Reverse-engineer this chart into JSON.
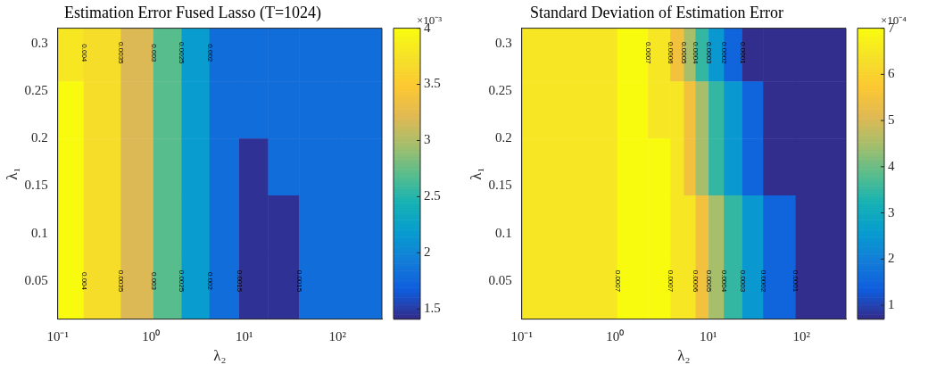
{
  "chart_data": [
    {
      "type": "heatmap",
      "title": "Estimation Error Fused Lasso (T=1024)",
      "xlabel": "λ₂",
      "ylabel": "λ₁",
      "clabel": "×10⁻³",
      "log": "x",
      "x": [
        0.12,
        0.3,
        0.75,
        1.5,
        3,
        6,
        13,
        25,
        60,
        180
      ],
      "y": [
        0.29,
        0.23,
        0.17,
        0.11,
        0.05
      ],
      "cells": [
        [
          3.8,
          3.7,
          3.2,
          2.7,
          2.2,
          1.8,
          1.8,
          1.8,
          1.8,
          1.8
        ],
        [
          4.0,
          3.7,
          3.2,
          2.7,
          2.2,
          1.8,
          1.8,
          1.8,
          1.8,
          1.8
        ],
        [
          4.0,
          3.7,
          3.2,
          2.7,
          2.2,
          1.8,
          1.45,
          1.8,
          1.8,
          1.8
        ],
        [
          4.0,
          3.7,
          3.2,
          2.7,
          2.2,
          1.8,
          1.45,
          1.45,
          1.8,
          1.8
        ],
        [
          4.0,
          3.7,
          3.2,
          2.7,
          2.2,
          1.8,
          1.45,
          1.45,
          1.8,
          1.8
        ]
      ],
      "xlim": [
        0.1,
        300
      ],
      "ylim": [
        0.01,
        0.316
      ],
      "xticks": [
        {
          "value": 0.1,
          "label": "10⁻¹"
        },
        {
          "value": 1,
          "label": "10⁰"
        },
        {
          "value": 10,
          "label": "10¹"
        },
        {
          "value": 100,
          "label": "10²"
        }
      ],
      "yticks": [
        0.05,
        0.1,
        0.15,
        0.2,
        0.25,
        0.3
      ],
      "clim": [
        1.41,
        4
      ],
      "cticks": [
        1.5,
        2,
        2.5,
        3,
        3.5,
        4
      ],
      "annotations": [
        "0.0015",
        "0.0015",
        "0.002",
        "0.0025",
        "0.003",
        "0.0035",
        "0.004",
        "0.002",
        "0.0025",
        "0.003",
        "0.0035",
        "0.004"
      ]
    },
    {
      "type": "heatmap",
      "title": "Standard Deviation of Estimation Error",
      "xlabel": "λ₂",
      "ylabel": "λ₁",
      "clabel": "×10⁻⁴",
      "log": "x",
      "x": [
        0.2,
        0.7,
        1.6,
        3.2,
        4.8,
        6.3,
        8.5,
        12,
        18,
        30,
        50,
        150
      ],
      "y": [
        0.29,
        0.23,
        0.17,
        0.11,
        0.05
      ],
      "cells": [
        [
          6.5,
          6.5,
          7.0,
          6.5,
          5.5,
          4.5,
          3.5,
          2.5,
          1.5,
          0.75,
          0.75,
          0.75
        ],
        [
          6.5,
          6.5,
          7.0,
          6.5,
          6.5,
          5.5,
          4.5,
          3.5,
          2.5,
          1.5,
          0.75,
          0.75
        ],
        [
          6.5,
          6.5,
          7.0,
          7.0,
          6.5,
          5.5,
          4.5,
          3.5,
          2.5,
          1.5,
          0.75,
          0.75
        ],
        [
          6.5,
          6.5,
          7.0,
          7.0,
          6.5,
          6.5,
          5.5,
          4.5,
          3.5,
          2.5,
          1.5,
          0.75
        ],
        [
          6.5,
          6.5,
          7.0,
          7.0,
          6.5,
          6.5,
          5.5,
          4.5,
          3.5,
          2.5,
          1.5,
          0.75
        ]
      ],
      "xlim": [
        0.1,
        300
      ],
      "ylim": [
        0.01,
        0.316
      ],
      "xticks": [
        {
          "value": 0.1,
          "label": "10⁻¹"
        },
        {
          "value": 1,
          "label": "10⁰"
        },
        {
          "value": 10,
          "label": "10¹"
        },
        {
          "value": 100,
          "label": "10²"
        }
      ],
      "yticks": [
        0.05,
        0.1,
        0.15,
        0.2,
        0.25,
        0.3
      ],
      "clim": [
        0.7,
        7
      ],
      "cticks": [
        1,
        2,
        3,
        4,
        5,
        6,
        7
      ],
      "annotations": [
        "0.0001",
        "0.0002",
        "0.0003",
        "0.0004",
        "0.0005",
        "0.0006",
        "0.0007",
        "0.0007",
        "0.0001",
        "0.0002",
        "0.0003",
        "0.0004",
        "0.0005",
        "0.0006",
        "0.0007"
      ]
    }
  ]
}
